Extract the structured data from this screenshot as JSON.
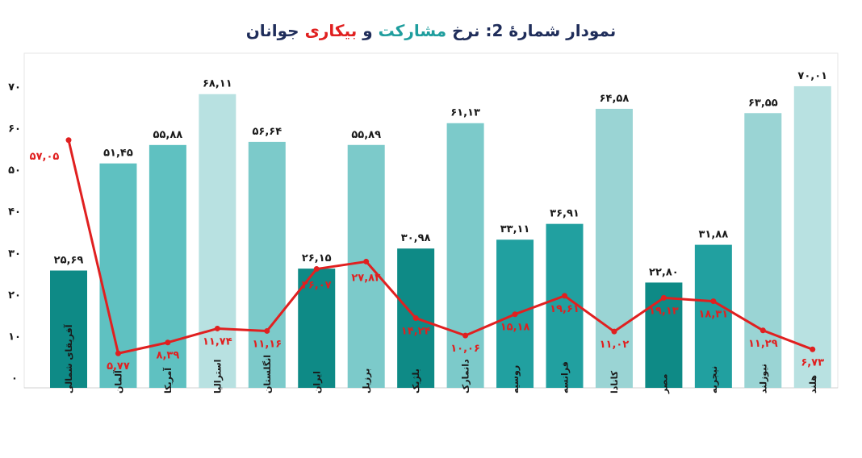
{
  "title": {
    "prefix": "نمودار شمارۀ 2: نرخ",
    "participation": "مشارکت",
    "connector": "و",
    "unemployment": "بیکاری",
    "suffix": "جوانان"
  },
  "colors": {
    "title_dark": "#1f2d5a",
    "participation": "#1f9e9e",
    "unemployment": "#e02020",
    "line": "#e02020",
    "bar_shades": [
      "#0e8a86",
      "#5fc1c1",
      "#7ccaca",
      "#b8e1e1",
      "#9ad4d4",
      "#21a0a0"
    ]
  },
  "chart_data": {
    "type": "bar",
    "categories": [
      "آفریقای شمالی",
      "آلمان",
      "آمریکا",
      "استرالیا",
      "انگلستان",
      "ایران",
      "برزیل",
      "بلژیک",
      "دانمارک",
      "روسیه",
      "فرانسه",
      "کانادا",
      "مصر",
      "نیجریه",
      "نیوزلند",
      "هلند"
    ],
    "series": [
      {
        "type": "bar",
        "values": [
          25.69,
          51.45,
          55.88,
          68.11,
          56.64,
          26.15,
          55.89,
          30.98,
          61.13,
          33.11,
          36.91,
          64.58,
          22.8,
          31.88,
          63.55,
          70.01
        ],
        "labels": [
          "۲۵,۶۹",
          "۵۱,۴۵",
          "۵۵,۸۸",
          "۶۸,۱۱",
          "۵۶,۶۴",
          "۲۶,۱۵",
          "۵۵,۸۹",
          "۳۰,۹۸",
          "۶۱,۱۳",
          "۳۳,۱۱",
          "۳۶,۹۱",
          "۶۴,۵۸",
          "۲۲,۸۰",
          "۳۱,۸۸",
          "۶۳,۵۵",
          "۷۰,۰۱"
        ],
        "shades": [
          0,
          1,
          1,
          3,
          2,
          0,
          2,
          0,
          2,
          5,
          5,
          4,
          0,
          5,
          4,
          3
        ]
      },
      {
        "type": "line",
        "values": [
          57.05,
          5.77,
          8.39,
          11.74,
          11.16,
          26.07,
          27.84,
          14.24,
          10.06,
          15.18,
          19.61,
          11.02,
          19.13,
          18.31,
          11.29,
          6.73
        ],
        "labels": [
          "۵۷,۰۵",
          "۵,۷۷",
          "۸,۳۹",
          "۱۱,۷۴",
          "۱۱,۱۶",
          "۲۶,۰۷",
          "۲۷,۸۴",
          "۱۴,۲۴",
          "۱۰,۰۶",
          "۱۵,۱۸",
          "۱۹,۶۱",
          "۱۱,۰۲",
          "۱۹,۱۳",
          "۱۸,۳۱",
          "۱۱,۲۹",
          "۶,۷۳"
        ]
      }
    ],
    "y_ticks": [
      0,
      10,
      20,
      30,
      40,
      50,
      60,
      70
    ],
    "y_tick_labels": [
      "۰",
      "۱۰",
      "۲۰",
      "۳۰",
      "۴۰",
      "۵۰",
      "۶۰",
      "۷۰"
    ],
    "ylim": [
      0,
      70
    ],
    "grid": false,
    "legend": "none"
  }
}
